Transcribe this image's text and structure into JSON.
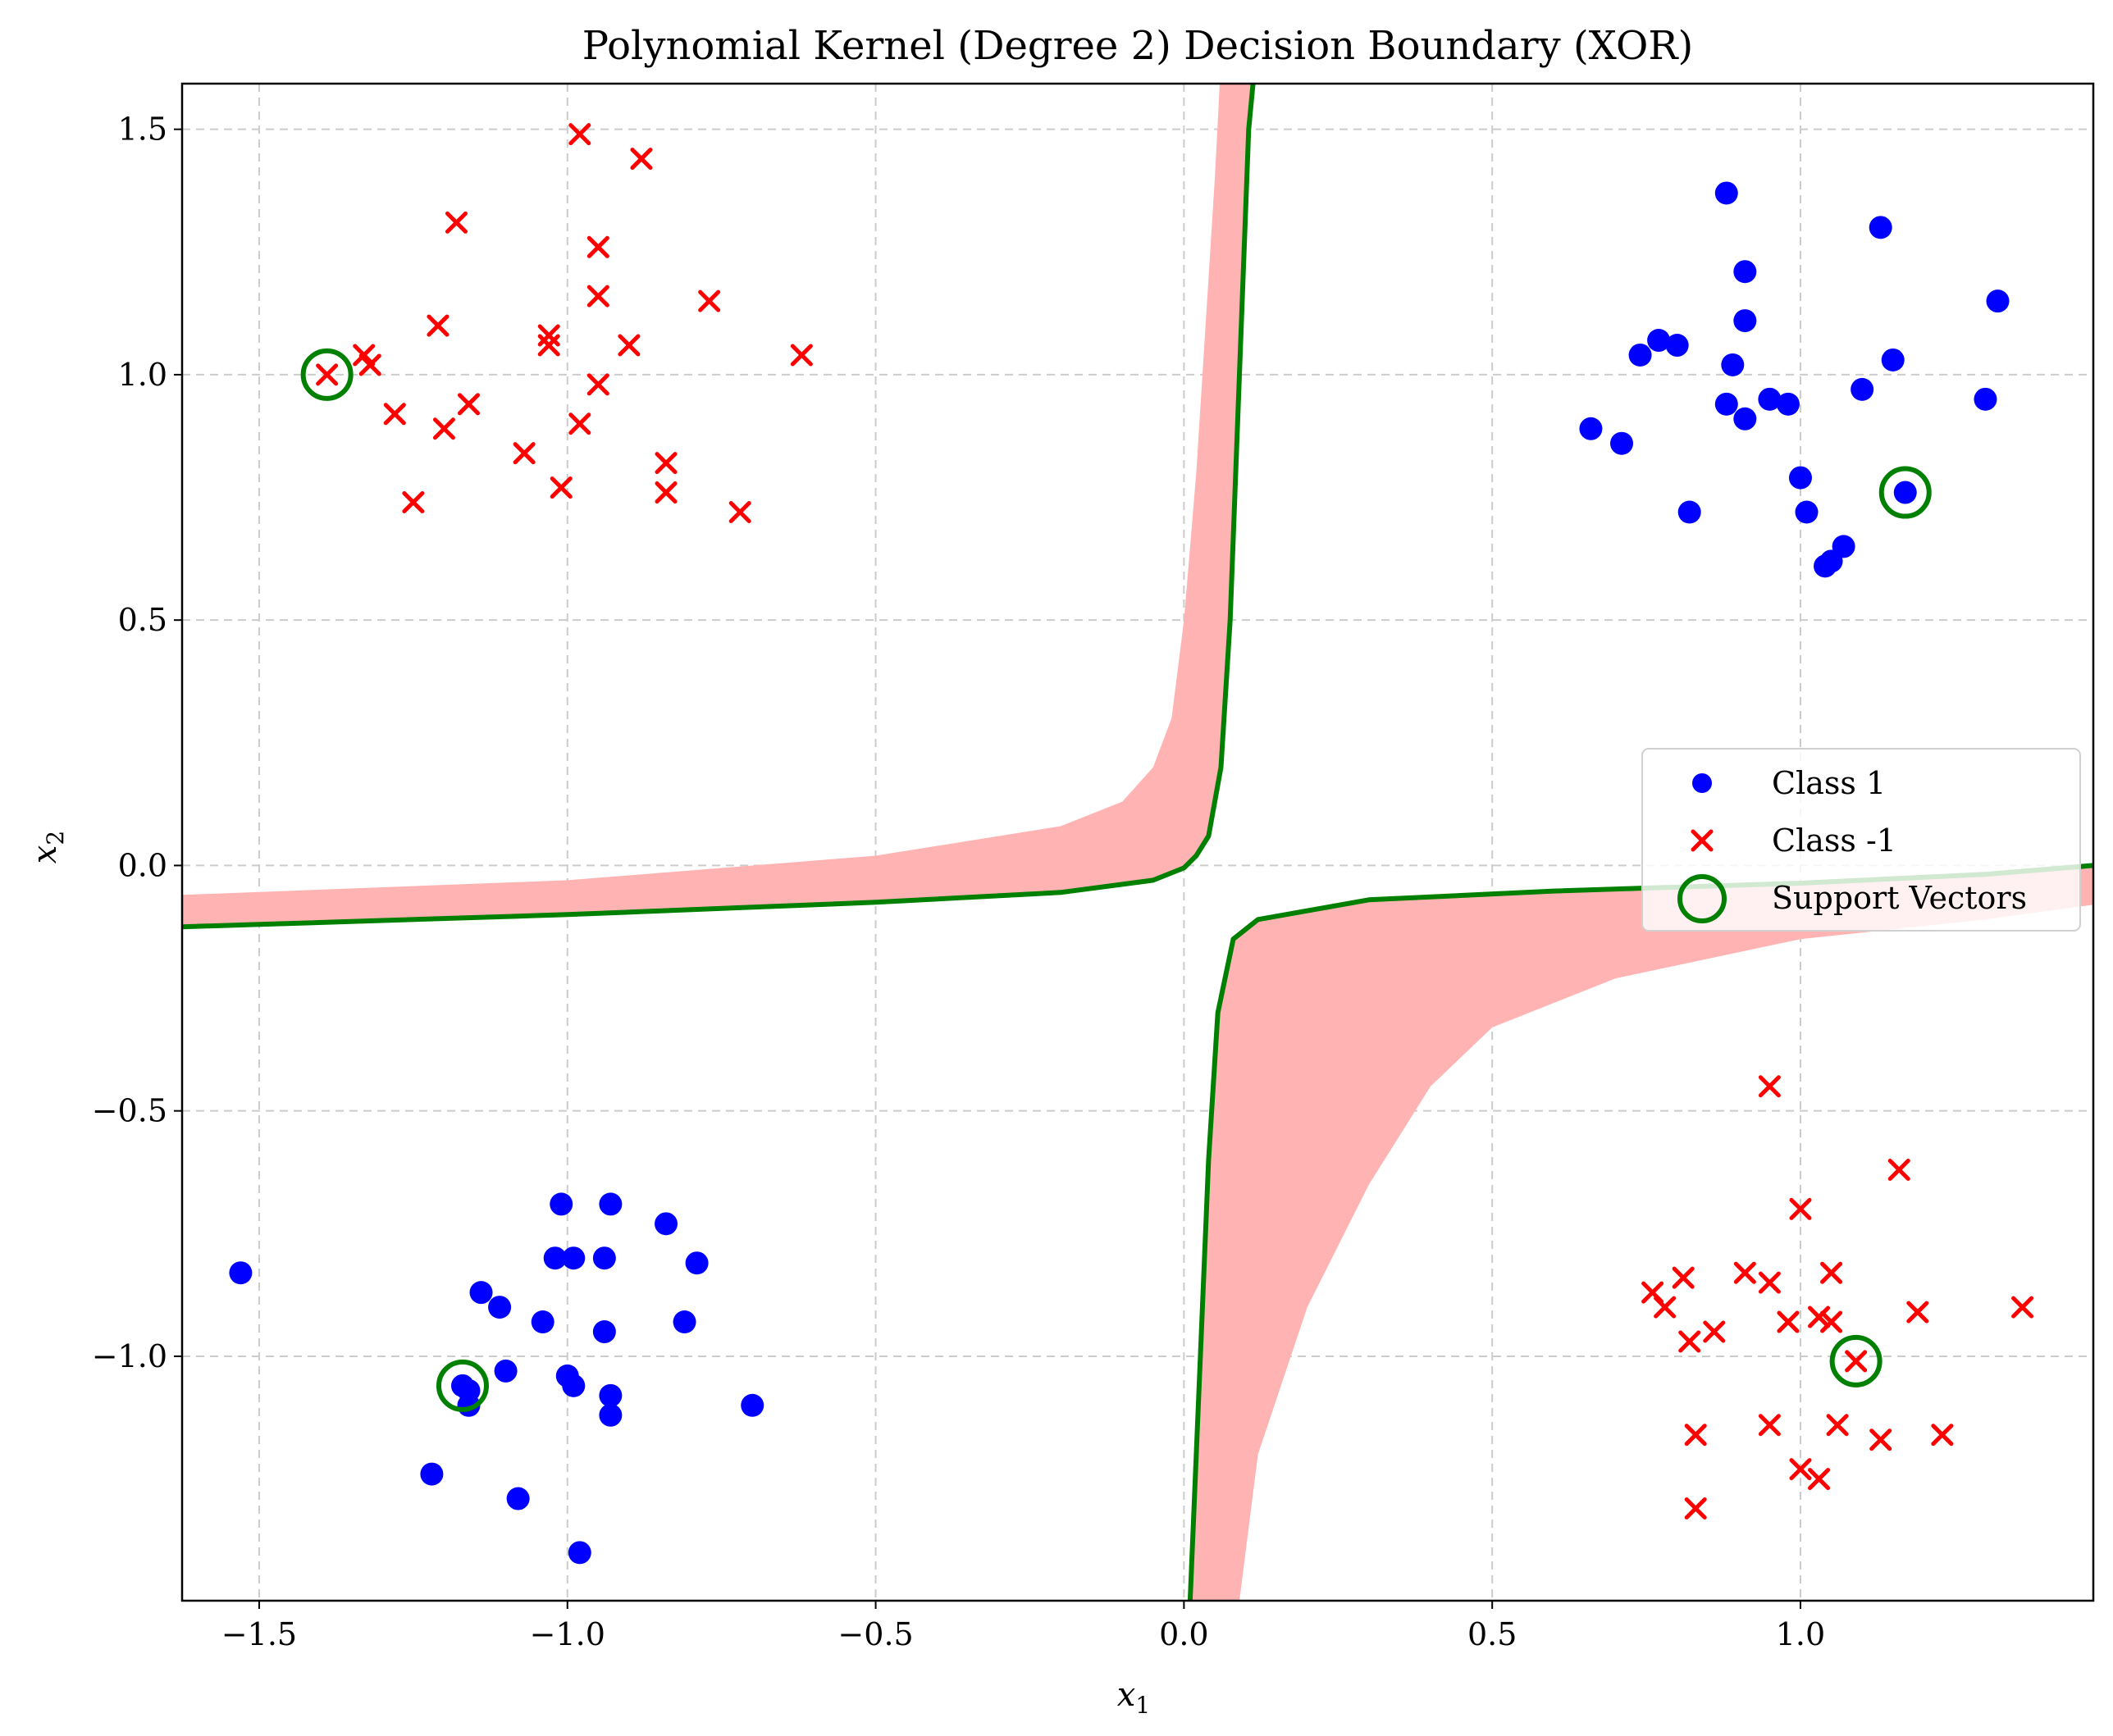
{
  "chart_data": {
    "type": "scatter",
    "title": "Polynomial Kernel (Degree 2) Decision Boundary (XOR)",
    "xlabel": "x",
    "xlabel_sub": "1",
    "ylabel": "x",
    "ylabel_sub": "2",
    "xlim": [
      -1.625,
      1.475
    ],
    "ylim": [
      -1.498,
      1.593
    ],
    "x_ticks": [
      -1.5,
      -1.0,
      -0.5,
      0.0,
      0.5,
      1.0
    ],
    "x_tick_labels": [
      "−1.5",
      "−1.0",
      "−0.5",
      "0.0",
      "0.5",
      "1.0"
    ],
    "y_ticks": [
      -1.0,
      -0.5,
      0.0,
      0.5,
      1.0,
      1.5
    ],
    "y_tick_labels": [
      "−1.0",
      "−0.5",
      "0.0",
      "0.5",
      "1.0",
      "1.5"
    ],
    "grid": true,
    "grid_style": "dashed",
    "legend": {
      "placement": "center-right",
      "entries": [
        {
          "label": "Class 1",
          "marker": "circle",
          "color": "#0000ff"
        },
        {
          "label": "Class -1",
          "marker": "x",
          "color": "#ff0000"
        },
        {
          "label": "Support Vectors",
          "marker": "open-circle",
          "color": "#008000"
        }
      ]
    },
    "colors": {
      "class1": "#0000ff",
      "class_neg1": "#ff0000",
      "support_vectors": "#008000",
      "boundary": "#008000",
      "margin_fill": "#ffb3b3",
      "grid": "#cccccc"
    },
    "series": [
      {
        "name": "Class 1",
        "points": [
          [
            0.88,
            1.37
          ],
          [
            1.13,
            1.3
          ],
          [
            0.91,
            1.21
          ],
          [
            1.32,
            1.15
          ],
          [
            0.91,
            1.11
          ],
          [
            0.77,
            1.07
          ],
          [
            0.8,
            1.06
          ],
          [
            0.74,
            1.04
          ],
          [
            1.15,
            1.03
          ],
          [
            0.89,
            1.02
          ],
          [
            1.1,
            0.97
          ],
          [
            1.3,
            0.95
          ],
          [
            0.95,
            0.95
          ],
          [
            0.88,
            0.94
          ],
          [
            0.98,
            0.94
          ],
          [
            0.91,
            0.91
          ],
          [
            0.66,
            0.89
          ],
          [
            0.71,
            0.86
          ],
          [
            1.0,
            0.79
          ],
          [
            1.17,
            0.76
          ],
          [
            0.82,
            0.72
          ],
          [
            1.01,
            0.72
          ],
          [
            1.07,
            0.65
          ],
          [
            1.05,
            0.62
          ],
          [
            1.04,
            0.61
          ],
          [
            -1.53,
            -0.83
          ],
          [
            -1.01,
            -0.69
          ],
          [
            -0.93,
            -0.69
          ],
          [
            -0.84,
            -0.73
          ],
          [
            -1.02,
            -0.8
          ],
          [
            -0.99,
            -0.8
          ],
          [
            -0.94,
            -0.8
          ],
          [
            -0.79,
            -0.81
          ],
          [
            -1.14,
            -0.87
          ],
          [
            -1.11,
            -0.9
          ],
          [
            -1.04,
            -0.93
          ],
          [
            -0.81,
            -0.93
          ],
          [
            -0.94,
            -0.95
          ],
          [
            -1.1,
            -1.03
          ],
          [
            -1.0,
            -1.04
          ],
          [
            -0.99,
            -1.06
          ],
          [
            -1.17,
            -1.06
          ],
          [
            -1.16,
            -1.07
          ],
          [
            -0.93,
            -1.08
          ],
          [
            -1.16,
            -1.1
          ],
          [
            -0.7,
            -1.1
          ],
          [
            -0.93,
            -1.12
          ],
          [
            -1.22,
            -1.24
          ],
          [
            -1.08,
            -1.29
          ],
          [
            -0.98,
            -1.4
          ]
        ]
      },
      {
        "name": "Class -1",
        "points": [
          [
            -0.98,
            1.49
          ],
          [
            -0.88,
            1.44
          ],
          [
            -1.18,
            1.31
          ],
          [
            -0.95,
            1.26
          ],
          [
            -0.95,
            1.16
          ],
          [
            -0.77,
            1.15
          ],
          [
            -1.21,
            1.1
          ],
          [
            -1.03,
            1.08
          ],
          [
            -1.03,
            1.06
          ],
          [
            -0.9,
            1.06
          ],
          [
            -1.33,
            1.04
          ],
          [
            -0.62,
            1.04
          ],
          [
            -1.32,
            1.02
          ],
          [
            -1.39,
            1.0
          ],
          [
            -0.95,
            0.98
          ],
          [
            -1.16,
            0.94
          ],
          [
            -1.28,
            0.92
          ],
          [
            -0.98,
            0.9
          ],
          [
            -1.2,
            0.89
          ],
          [
            -1.07,
            0.84
          ],
          [
            -0.84,
            0.82
          ],
          [
            -1.01,
            0.77
          ],
          [
            -0.84,
            0.76
          ],
          [
            -1.25,
            0.74
          ],
          [
            -0.72,
            0.72
          ],
          [
            0.95,
            -0.45
          ],
          [
            1.16,
            -0.62
          ],
          [
            1.0,
            -0.7
          ],
          [
            0.91,
            -0.83
          ],
          [
            1.05,
            -0.83
          ],
          [
            0.81,
            -0.84
          ],
          [
            0.95,
            -0.85
          ],
          [
            0.76,
            -0.87
          ],
          [
            0.78,
            -0.9
          ],
          [
            1.36,
            -0.9
          ],
          [
            1.19,
            -0.91
          ],
          [
            1.03,
            -0.92
          ],
          [
            1.05,
            -0.93
          ],
          [
            0.98,
            -0.93
          ],
          [
            0.86,
            -0.95
          ],
          [
            0.82,
            -0.97
          ],
          [
            1.09,
            -1.01
          ],
          [
            0.95,
            -1.14
          ],
          [
            1.06,
            -1.14
          ],
          [
            0.83,
            -1.16
          ],
          [
            1.23,
            -1.16
          ],
          [
            1.13,
            -1.17
          ],
          [
            1.0,
            -1.23
          ],
          [
            1.03,
            -1.25
          ],
          [
            0.83,
            -1.31
          ]
        ]
      },
      {
        "name": "Support Vectors",
        "points": [
          [
            -1.39,
            1.0
          ],
          [
            1.17,
            0.76
          ],
          [
            -1.17,
            -1.06
          ],
          [
            1.09,
            -1.01
          ]
        ]
      }
    ],
    "decision_boundary": {
      "color": "#008000",
      "upper_left_branch": [
        [
          -1.625,
          -0.125
        ],
        [
          -1.5,
          -0.12
        ],
        [
          -1.0,
          -0.1
        ],
        [
          -0.5,
          -0.075
        ],
        [
          -0.2,
          -0.055
        ],
        [
          -0.05,
          -0.03
        ],
        [
          0.0,
          -0.005
        ],
        [
          0.02,
          0.02
        ],
        [
          0.04,
          0.06
        ],
        [
          0.06,
          0.2
        ],
        [
          0.075,
          0.5
        ],
        [
          0.09,
          1.0
        ],
        [
          0.105,
          1.5
        ],
        [
          0.112,
          1.593
        ]
      ],
      "lower_right_branch": [
        [
          0.01,
          -1.498
        ],
        [
          0.02,
          -1.2
        ],
        [
          0.03,
          -0.9
        ],
        [
          0.04,
          -0.6
        ],
        [
          0.055,
          -0.3
        ],
        [
          0.08,
          -0.15
        ],
        [
          0.12,
          -0.11
        ],
        [
          0.3,
          -0.07
        ],
        [
          0.6,
          -0.052
        ],
        [
          1.0,
          -0.036
        ],
        [
          1.3,
          -0.018
        ],
        [
          1.475,
          0.0
        ]
      ]
    },
    "margin_band": {
      "color": "#ffb3b3",
      "upper_left_outer": [
        [
          -1.625,
          -0.06
        ],
        [
          -1.0,
          -0.03
        ],
        [
          -0.5,
          0.02
        ],
        [
          -0.2,
          0.08
        ],
        [
          -0.1,
          0.13
        ],
        [
          -0.05,
          0.2
        ],
        [
          -0.02,
          0.3
        ],
        [
          0.0,
          0.5
        ],
        [
          0.02,
          0.8
        ],
        [
          0.035,
          1.1
        ],
        [
          0.05,
          1.4
        ],
        [
          0.058,
          1.593
        ]
      ],
      "lower_right_outer": [
        [
          0.09,
          -1.498
        ],
        [
          0.12,
          -1.2
        ],
        [
          0.2,
          -0.9
        ],
        [
          0.3,
          -0.65
        ],
        [
          0.4,
          -0.45
        ],
        [
          0.5,
          -0.33
        ],
        [
          0.7,
          -0.23
        ],
        [
          1.0,
          -0.15
        ],
        [
          1.3,
          -0.11
        ],
        [
          1.475,
          -0.08
        ]
      ]
    }
  }
}
